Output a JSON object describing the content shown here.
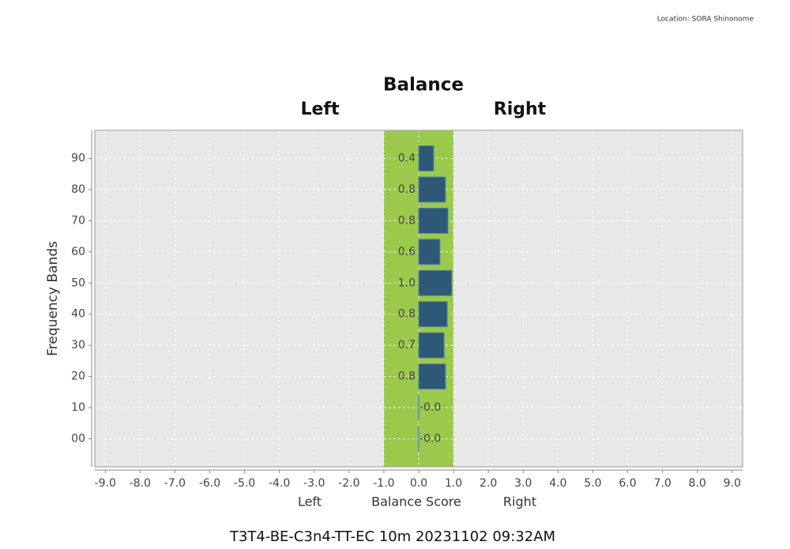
{
  "location": "Location: SORA Shinonome",
  "footer": "T3T4-BE-C3n4-TT-EC 10m 20231102 09:32AM",
  "chart_data": {
    "type": "hbar",
    "title": "Balance",
    "side_labels": [
      "Left",
      "Right"
    ],
    "x_label": "Balance Score",
    "x_side_labels": [
      "Left",
      "Right"
    ],
    "y_label": "Frequency Bands",
    "categories": [
      "90",
      "80",
      "70",
      "60",
      "50",
      "40",
      "30",
      "20",
      "10",
      "00"
    ],
    "values": [
      0.43,
      0.77,
      0.84,
      0.61,
      0.95,
      0.82,
      0.73,
      0.77,
      -0.01,
      -0.01
    ],
    "value_labels": [
      "0.4",
      "0.8",
      "0.8",
      "0.6",
      "1.0",
      "0.8",
      "0.7",
      "0.8",
      "-0.0",
      "-0.0"
    ],
    "color": "#2e5878",
    "highlight": {
      "range": [
        -1,
        1
      ],
      "color": "#9bc94b"
    },
    "xlim": [
      -9.3,
      9.3
    ],
    "xticks": [
      {
        "value": -9,
        "label": "-9.0"
      },
      {
        "value": -8,
        "label": "-8.0"
      },
      {
        "value": -7,
        "label": "-7.0"
      },
      {
        "value": -6,
        "label": "-6.0"
      },
      {
        "value": -5,
        "label": "-5.0"
      },
      {
        "value": -4,
        "label": "-4.0"
      },
      {
        "value": -3,
        "label": "-3.0"
      },
      {
        "value": -2,
        "label": "-2.0"
      },
      {
        "value": -1,
        "label": "-1.0"
      },
      {
        "value": 0,
        "label": "0.0"
      },
      {
        "value": 1,
        "label": "1.0"
      },
      {
        "value": 2,
        "label": "2.0"
      },
      {
        "value": 3,
        "label": "3.0"
      },
      {
        "value": 4,
        "label": "4.0"
      },
      {
        "value": 5,
        "label": "5.0"
      },
      {
        "value": 6,
        "label": "6.0"
      },
      {
        "value": 7,
        "label": "7.0"
      },
      {
        "value": 8,
        "label": "8.0"
      },
      {
        "value": 9,
        "label": "9.0"
      }
    ],
    "grid": true
  }
}
